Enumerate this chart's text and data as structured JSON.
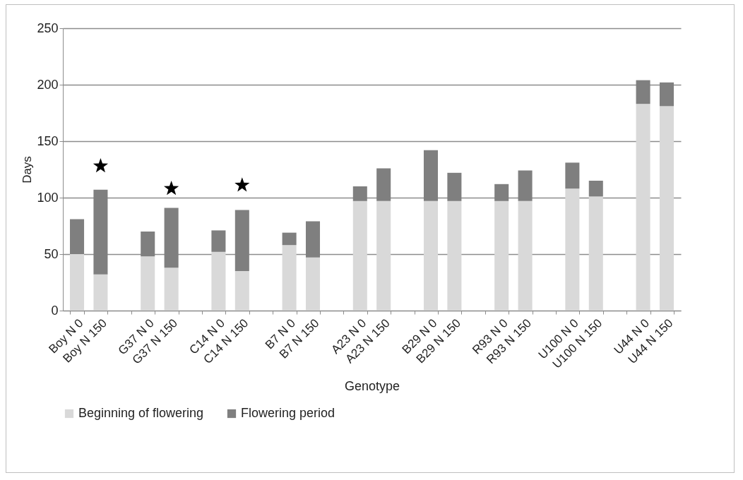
{
  "chart_data": {
    "type": "bar",
    "stacked": true,
    "xlabel": "Genotype",
    "ylabel": "Days",
    "categories": [
      "Boy N 0",
      "Boy N 150",
      null,
      "G37 N 0",
      "G37 N 150",
      null,
      "C14 N 0",
      "C14 N 150",
      null,
      "B7 N 0",
      "B7 N 150",
      null,
      "A23 N 0",
      "A23 N 150",
      null,
      "B29 N 0",
      "B29 N 150",
      null,
      "R93 N 0",
      "R93 N 150",
      null,
      "U100 N 0",
      "U100 N 150",
      null,
      "U44 N 0",
      "U44 N 150"
    ],
    "series": [
      {
        "name": "Beginning of flowering",
        "color": "#d9d9d9",
        "values": [
          50,
          32,
          null,
          48,
          38,
          null,
          52,
          35,
          null,
          58,
          47,
          null,
          97,
          97,
          null,
          97,
          97,
          null,
          97,
          97,
          null,
          108,
          101,
          null,
          183,
          181
        ]
      },
      {
        "name": "Flowering period",
        "color": "#7f7f7f",
        "values": [
          31,
          75,
          null,
          22,
          53,
          null,
          19,
          54,
          null,
          11,
          32,
          null,
          13,
          29,
          null,
          45,
          25,
          null,
          15,
          27,
          null,
          23,
          14,
          null,
          21,
          21
        ]
      },
      {
        "type": "scatter",
        "marker": "star",
        "color": "#000000",
        "x": [
          "Boy N 150",
          "G37 N 150",
          "C14 N 150"
        ],
        "values": [
          128,
          108,
          111
        ]
      }
    ],
    "ylim": [
      0,
      250
    ],
    "yticks": [
      0,
      50,
      100,
      150,
      200,
      250
    ],
    "grid": "y",
    "legend": "bottom"
  }
}
